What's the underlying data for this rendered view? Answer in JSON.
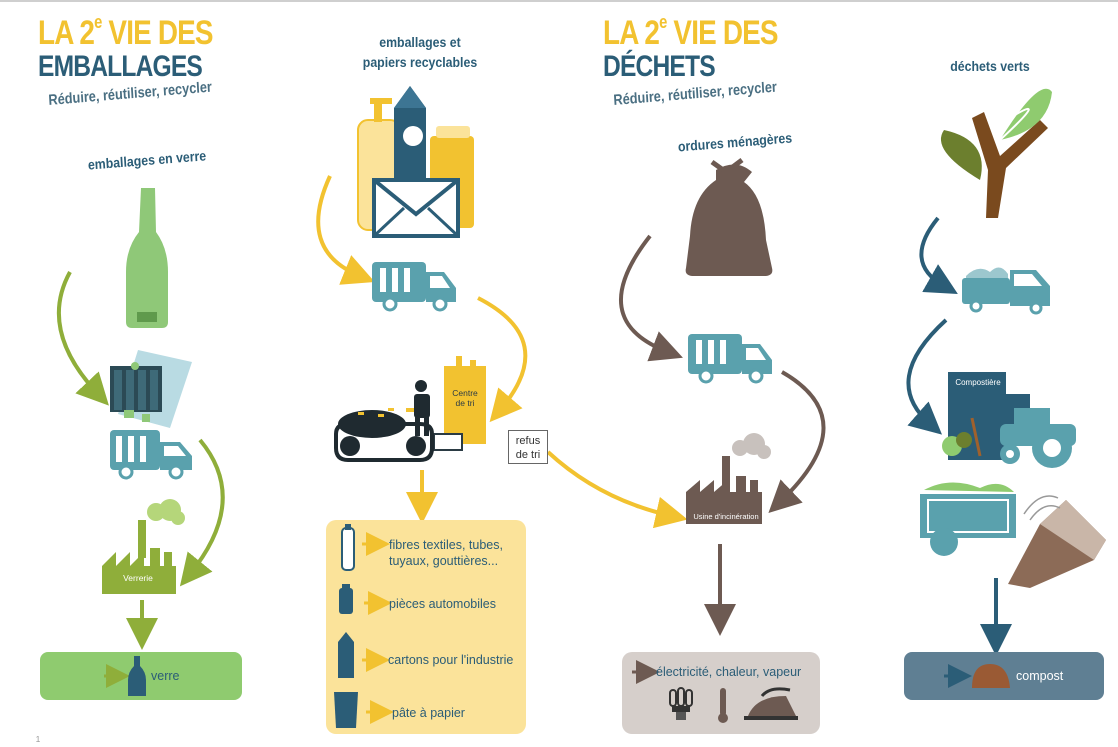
{
  "left_panel": {
    "title_line1": "LA 2",
    "title_sup": "e",
    "title_line1_end": " VIE DES",
    "title_line2": "EMBALLAGES",
    "subtitle": "Réduire, réutiliser, recycler",
    "glass_label": "emballages en verre",
    "factory_label": "Verrerie",
    "result_label": "verre",
    "recyclables_label_1": "emballages et",
    "recyclables_label_2": "papiers recyclables",
    "sorting_label_1": "Centre",
    "sorting_label_2": "de tri",
    "reject_label_1": "refus",
    "reject_label_2": "de tri",
    "outputs": [
      {
        "icon": "bottle-icon",
        "text_1": "fibres textiles, tubes,",
        "text_2": "tuyaux, gouttières..."
      },
      {
        "icon": "can-icon",
        "text_1": "pièces automobiles",
        "text_2": ""
      },
      {
        "icon": "carton-icon",
        "text_1": "cartons pour l'industrie",
        "text_2": ""
      },
      {
        "icon": "paper-icon",
        "text_1": "pâte à papier",
        "text_2": ""
      }
    ]
  },
  "right_panel": {
    "title_line1": "LA 2",
    "title_sup": "e",
    "title_line1_end": " VIE DES",
    "title_line2": "DÉCHETS",
    "subtitle": "Réduire, réutiliser, recycler",
    "household_label": "ordures ménagères",
    "incinerator_label": "Usine d'incinération",
    "energy_label": "électricité, chaleur, vapeur",
    "green_label": "déchets verts",
    "compost_site_label": "Compostière",
    "compost_label": "compost"
  },
  "footer": {
    "page_left": "1"
  },
  "colors": {
    "yellow": "#f2c230",
    "navy": "#2b5d77",
    "teal": "#5aa1ad",
    "olive": "#8fae3a",
    "brown": "#6d5a52",
    "panel_yellow": "#fbe39a",
    "panel_green": "#8fcb6f",
    "panel_grey": "#d6cfcb",
    "panel_slate": "#5f7f93"
  }
}
